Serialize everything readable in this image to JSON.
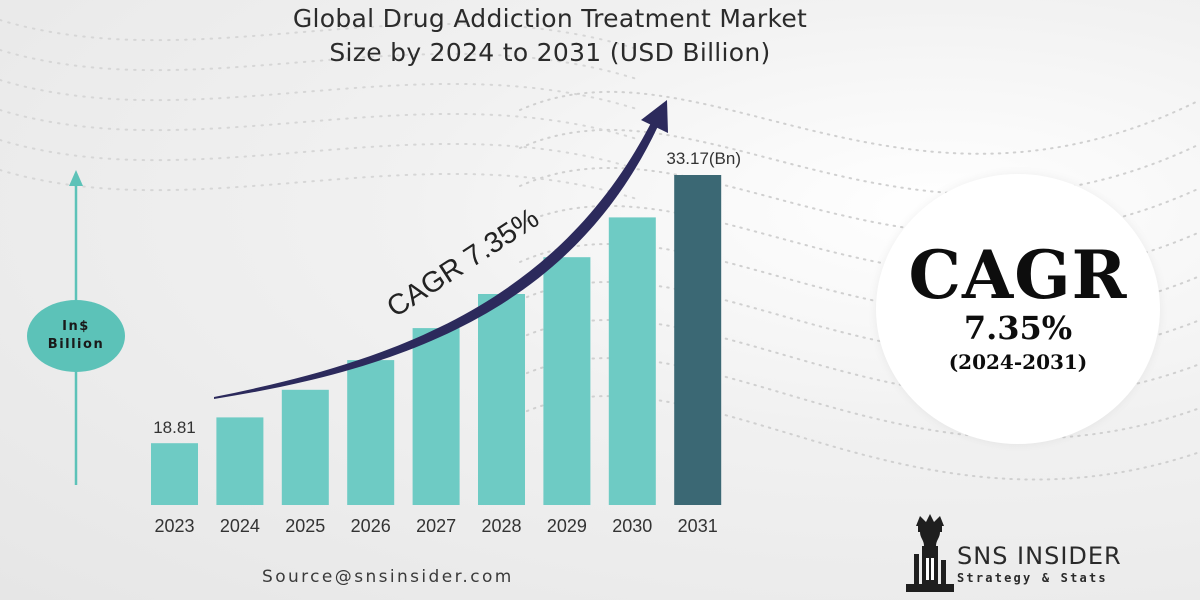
{
  "colors": {
    "bar": "#6ecbc4",
    "bar_highlight": "#3b6874",
    "arrow": "#2c2a5c",
    "y_axis_arrow": "#5cc2b8",
    "label_ellipse": "#5cc2b8"
  },
  "chart_data": {
    "type": "bar",
    "title": "Global Drug Addiction Treatment Market Size by 2024 to 2031 (USD Billion)",
    "title_lines": [
      "Global Drug Addiction Treatment Market",
      "Size by 2024 to 2031 (USD Billion)"
    ],
    "ylabel_lines": [
      "In$",
      "Billion"
    ],
    "categories": [
      "2023",
      "2024",
      "2025",
      "2026",
      "2027",
      "2028",
      "2029",
      "2030",
      "2031"
    ],
    "values": [
      18.81,
      20.19,
      21.67,
      23.26,
      24.97,
      26.8,
      28.77,
      30.9,
      33.17
    ],
    "data_labels": {
      "first": "18.81",
      "last": "33.17(Bn)"
    },
    "highlight_index": 8,
    "ylim": [
      15.5,
      33.17
    ],
    "trend_arrow_label": "CAGR 7.35%",
    "grid": false,
    "legend": "none"
  },
  "cagr_badge": {
    "big": "CAGR",
    "pct": "7.35%",
    "period": "(2024-2031)"
  },
  "source": "Source@snsinsider.com",
  "brand": {
    "name": "SNS INSIDER",
    "tagline": "Strategy & Stats"
  }
}
